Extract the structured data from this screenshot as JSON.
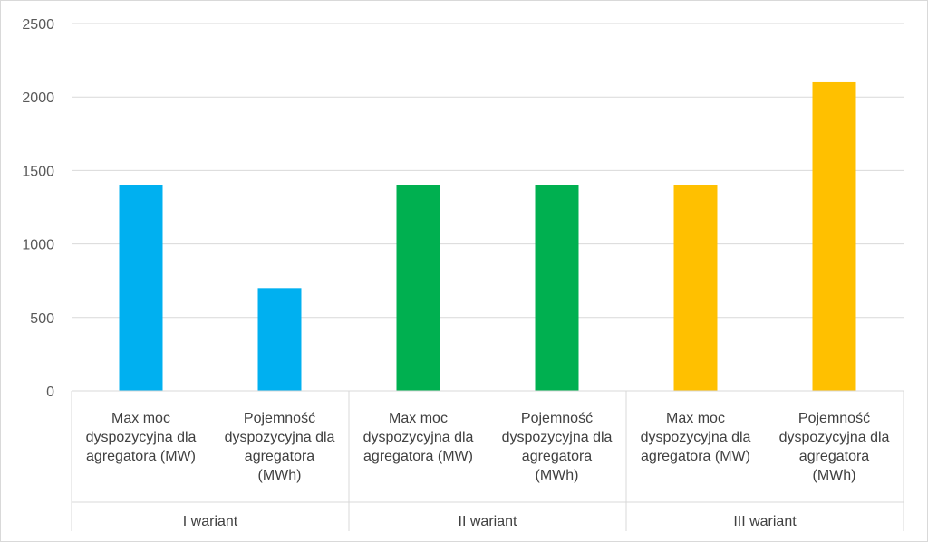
{
  "chart_data": {
    "type": "bar",
    "title": "",
    "xlabel": "",
    "ylabel": "",
    "ylim": [
      0,
      2500
    ],
    "yticks": [
      0,
      500,
      1000,
      1500,
      2000,
      2500
    ],
    "grid": true,
    "legend": "none",
    "groups": [
      {
        "label": "I wariant",
        "color": "#00B0F0",
        "bars": [
          {
            "label": [
              "Max moc",
              "dyspozycyjna dla",
              "agregatora (MW)"
            ],
            "value": 1400
          },
          {
            "label": [
              "Pojemność",
              "dyspozycyjna dla",
              "agregatora",
              "(MWh)"
            ],
            "value": 700
          }
        ]
      },
      {
        "label": "II wariant",
        "color": "#00B050",
        "bars": [
          {
            "label": [
              "Max moc",
              "dyspozycyjna dla",
              "agregatora (MW)"
            ],
            "value": 1400
          },
          {
            "label": [
              "Pojemność",
              "dyspozycyjna dla",
              "agregatora",
              "(MWh)"
            ],
            "value": 1400
          }
        ]
      },
      {
        "label": "III wariant",
        "color": "#FFC000",
        "bars": [
          {
            "label": [
              "Max moc",
              "dyspozycyjna dla",
              "agregatora (MW)"
            ],
            "value": 1400
          },
          {
            "label": [
              "Pojemność",
              "dyspozycyjna dla",
              "agregatora",
              "(MWh)"
            ],
            "value": 2100
          }
        ]
      }
    ]
  }
}
